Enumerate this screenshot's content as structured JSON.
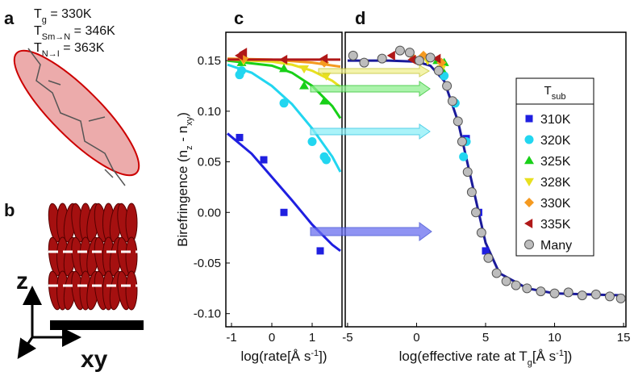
{
  "panels": {
    "a": "a",
    "b": "b",
    "c": "c",
    "d": "d"
  },
  "annotations": [
    {
      "main": "T",
      "sub": "g",
      "rest": " = 330K"
    },
    {
      "main": "T",
      "sub": "Sm→N",
      "rest": " = 346K"
    },
    {
      "main": "T",
      "sub": "N→I",
      "rest": " = 363K"
    }
  ],
  "axis_labels": {
    "z": "z",
    "xy": "xy"
  },
  "chart_data": [
    {
      "type": "scatter",
      "y_label": {
        "main": "Birefringence (n",
        "sub1": "z",
        "mid": " - n",
        "sub2": "xy",
        "end": ")"
      },
      "x_label": {
        "main": "log(rate[Å s",
        "sup": "-1",
        "end": "])"
      },
      "xlim": [
        -1.14,
        1.74
      ],
      "ylim": [
        -0.113,
        0.178
      ],
      "xticks": [
        -1,
        0,
        1
      ],
      "yticks": [
        {
          "value": -0.1,
          "label": "-0.10"
        },
        -0.05,
        {
          "value": 0,
          "label": "0.00"
        },
        0.05,
        {
          "value": 0.1,
          "label": "0.10"
        },
        0.15
      ],
      "series": [
        {
          "color": "#1f1fe0",
          "marker": "square",
          "x": [
            -0.8,
            -0.2,
            0.3,
            1.2
          ],
          "values": [
            0.074,
            0.052,
            0.0,
            -0.038
          ],
          "fit": {
            "x": [
              -1.1,
              -0.5,
              0,
              0.5,
              1,
              1.5,
              1.7
            ],
            "y": [
              0.078,
              0.058,
              0.035,
              0.012,
              -0.012,
              -0.032,
              -0.038
            ]
          }
        },
        {
          "color": "#22d6f0",
          "marker": "circle",
          "x": [
            -0.8,
            -0.75,
            0.3,
            1.0,
            1.3,
            1.35
          ],
          "values": [
            0.136,
            0.14,
            0.108,
            0.07,
            0.055,
            0.052
          ],
          "fit": {
            "x": [
              -1.1,
              -0.5,
              0,
              0.5,
              1,
              1.5,
              1.7
            ],
            "y": [
              0.146,
              0.138,
              0.125,
              0.107,
              0.083,
              0.055,
              0.04
            ]
          }
        },
        {
          "color": "#18d018",
          "marker": "tri-up",
          "x": [
            -0.75,
            0.3,
            0.8,
            1.3
          ],
          "values": [
            0.148,
            0.142,
            0.125,
            0.11
          ],
          "fit": {
            "x": [
              -1.1,
              0,
              0.5,
              1,
              1.5,
              1.7
            ],
            "y": [
              0.15,
              0.145,
              0.138,
              0.125,
              0.105,
              0.093
            ]
          }
        },
        {
          "color": "#e8e020",
          "marker": "tri-down",
          "x": [
            -0.7,
            0.8,
            1.35
          ],
          "values": [
            0.15,
            0.142,
            0.135
          ],
          "fit": {
            "x": [
              -1.1,
              0,
              0.5,
              1,
              1.5,
              1.7
            ],
            "y": [
              0.151,
              0.149,
              0.146,
              0.14,
              0.13,
              0.124
            ]
          }
        },
        {
          "color": "#f59a20",
          "marker": "diamond",
          "x": [
            -0.7,
            1.3
          ],
          "values": [
            0.152,
            0.148
          ],
          "fit": {
            "x": [
              -1.1,
              0,
              1,
              1.7
            ],
            "y": [
              0.152,
              0.151,
              0.148,
              0.144
            ]
          }
        },
        {
          "color": "#b01818",
          "marker": "tri-left",
          "x": [
            -0.8,
            -0.7,
            0.3,
            1.3
          ],
          "values": [
            0.155,
            0.158,
            0.151,
            0.152
          ],
          "fit": {
            "x": [
              -1.1,
              1.7
            ],
            "y": [
              0.151,
              0.151
            ]
          }
        }
      ]
    },
    {
      "type": "scatter",
      "x_label": {
        "main": "log(effective rate at T",
        "sub": "g",
        "mid": "[Å s",
        "sup": "-1",
        "end": "])"
      },
      "xlim": [
        -5.17,
        15.17
      ],
      "ylim": [
        -0.113,
        0.178
      ],
      "xticks": [
        -5,
        0,
        5,
        10,
        15
      ],
      "legend_title": {
        "main": "T",
        "sub": "sub"
      },
      "fit": {
        "color": "#1a1a9a",
        "x": [
          -5,
          -2,
          0,
          1,
          2,
          3,
          4,
          5,
          6,
          8,
          10,
          15
        ],
        "y": [
          0.15,
          0.15,
          0.149,
          0.145,
          0.13,
          0.09,
          0.03,
          -0.03,
          -0.06,
          -0.075,
          -0.08,
          -0.082
        ]
      },
      "series": [
        {
          "name": "310K",
          "color": "#1f1fe0",
          "marker": "square",
          "x": [
            3.6,
            4.5,
            5.0
          ],
          "values": [
            0.073,
            0.0,
            -0.038
          ]
        },
        {
          "name": "320K",
          "color": "#22d6f0",
          "marker": "circle",
          "x": [
            2.0,
            2.8,
            3.6,
            3.4
          ],
          "values": [
            0.135,
            0.108,
            0.07,
            0.055
          ]
        },
        {
          "name": "325K",
          "color": "#18d018",
          "marker": "tri-up",
          "x": [
            1.5,
            2.0,
            1.8
          ],
          "values": [
            0.15,
            0.148,
            0.142
          ]
        },
        {
          "name": "328K",
          "color": "#e8e020",
          "marker": "tri-down",
          "x": [
            0.8,
            1.8
          ],
          "values": [
            0.15,
            0.142
          ]
        },
        {
          "name": "330K",
          "color": "#f59a20",
          "marker": "diamond",
          "x": [
            -0.2,
            0.5,
            1.8
          ],
          "values": [
            0.152,
            0.155,
            0.148
          ]
        },
        {
          "name": "335K",
          "color": "#b01818",
          "marker": "tri-left",
          "x": [
            -1.8,
            -0.3,
            1.5
          ],
          "values": [
            0.155,
            0.151,
            0.152
          ]
        },
        {
          "name": "Many",
          "color": "#bdbdbd",
          "marker": "circle-o",
          "x": [
            -4.6,
            -3.8,
            -2.5,
            -1.2,
            -0.5,
            0.2,
            1.0,
            1.6,
            2.2,
            2.6,
            3.0,
            3.3,
            3.7,
            4.0,
            4.3,
            4.7,
            5.2,
            5.8,
            6.5,
            7.2,
            8.0,
            9.0,
            10.0,
            11.0,
            12.0,
            13.0,
            14.0,
            14.8
          ],
          "values": [
            0.155,
            0.148,
            0.152,
            0.16,
            0.158,
            0.15,
            0.153,
            0.14,
            0.125,
            0.11,
            0.09,
            0.07,
            0.04,
            0.02,
            0.0,
            -0.02,
            -0.045,
            -0.06,
            -0.068,
            -0.072,
            -0.075,
            -0.078,
            -0.08,
            -0.079,
            -0.082,
            -0.081,
            -0.083,
            -0.085
          ]
        }
      ]
    }
  ]
}
